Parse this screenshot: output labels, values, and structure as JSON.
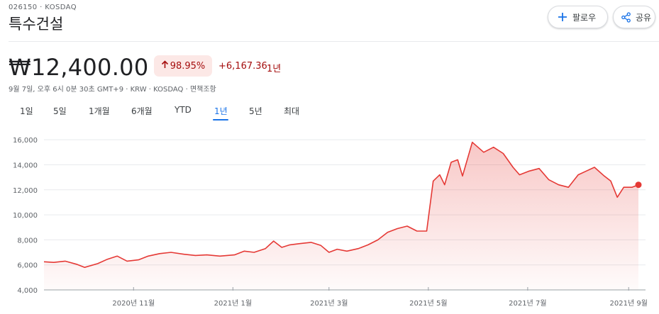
{
  "header": {
    "ticker": "026150 · KOSDAQ",
    "company": "특수건설",
    "follow_label": "팔로우",
    "share_label": "공유",
    "follow_icon": "plus-icon",
    "share_icon": "share-icon"
  },
  "quote": {
    "price": "₩12,400.00",
    "change_percent": "98.95%",
    "change_abs": "+6,167.36",
    "change_period": "1년",
    "meta": "9월 7일, 오후 6시 0분 30초 GMT+9 · KRW · KOSDAQ · 면책조항",
    "negative_color": "#a50e0e",
    "pill_color": "#fce8e6"
  },
  "tabs": [
    {
      "label": "1일",
      "active": false
    },
    {
      "label": "5일",
      "active": false
    },
    {
      "label": "1개월",
      "active": false
    },
    {
      "label": "6개월",
      "active": false
    },
    {
      "label": "YTD",
      "active": false
    },
    {
      "label": "1년",
      "active": true
    },
    {
      "label": "5년",
      "active": false
    },
    {
      "label": "최대",
      "active": false
    }
  ],
  "chart_data": {
    "type": "area",
    "xlabel": "",
    "ylabel": "",
    "x_ticks": [
      "2020년 11월",
      "2021년 1월",
      "2021년 3월",
      "2021년 5월",
      "2021년 7월",
      "2021년 9월"
    ],
    "y_ticks": [
      4000,
      6000,
      8000,
      10000,
      12000,
      14000,
      16000
    ],
    "ylim": [
      4000,
      16800
    ],
    "xlim": [
      "2020-09-07",
      "2021-09-07"
    ],
    "grid": "horizontal",
    "line_color": "#e53935",
    "series": [
      {
        "points": [
          [
            "2020-09-07",
            6250
          ],
          [
            "2020-09-13",
            6200
          ],
          [
            "2020-09-20",
            6300
          ],
          [
            "2020-09-27",
            6050
          ],
          [
            "2020-10-02",
            5800
          ],
          [
            "2020-10-10",
            6100
          ],
          [
            "2020-10-16",
            6450
          ],
          [
            "2020-10-22",
            6700
          ],
          [
            "2020-10-28",
            6300
          ],
          [
            "2020-11-04",
            6400
          ],
          [
            "2020-11-10",
            6700
          ],
          [
            "2020-11-17",
            6900
          ],
          [
            "2020-11-24",
            7000
          ],
          [
            "2020-12-02",
            6850
          ],
          [
            "2020-12-09",
            6750
          ],
          [
            "2020-12-16",
            6800
          ],
          [
            "2020-12-24",
            6700
          ],
          [
            "2021-01-02",
            6800
          ],
          [
            "2021-01-08",
            7100
          ],
          [
            "2021-01-14",
            7000
          ],
          [
            "2021-01-21",
            7300
          ],
          [
            "2021-01-26",
            7900
          ],
          [
            "2021-01-31",
            7400
          ],
          [
            "2021-02-05",
            7600
          ],
          [
            "2021-02-11",
            7700
          ],
          [
            "2021-02-18",
            7800
          ],
          [
            "2021-02-24",
            7550
          ],
          [
            "2021-03-01",
            7000
          ],
          [
            "2021-03-06",
            7250
          ],
          [
            "2021-03-12",
            7100
          ],
          [
            "2021-03-19",
            7300
          ],
          [
            "2021-03-25",
            7600
          ],
          [
            "2021-03-31",
            8000
          ],
          [
            "2021-04-06",
            8600
          ],
          [
            "2021-04-12",
            8900
          ],
          [
            "2021-04-18",
            9100
          ],
          [
            "2021-04-24",
            8700
          ],
          [
            "2021-04-30",
            8700
          ],
          [
            "2021-05-04",
            12700
          ],
          [
            "2021-05-08",
            13200
          ],
          [
            "2021-05-11",
            12400
          ],
          [
            "2021-05-15",
            14200
          ],
          [
            "2021-05-19",
            14400
          ],
          [
            "2021-05-22",
            13100
          ],
          [
            "2021-05-28",
            15800
          ],
          [
            "2021-06-04",
            15000
          ],
          [
            "2021-06-10",
            15400
          ],
          [
            "2021-06-16",
            14900
          ],
          [
            "2021-06-22",
            13800
          ],
          [
            "2021-06-26",
            13200
          ],
          [
            "2021-07-02",
            13500
          ],
          [
            "2021-07-08",
            13700
          ],
          [
            "2021-07-14",
            12800
          ],
          [
            "2021-07-20",
            12400
          ],
          [
            "2021-07-26",
            12200
          ],
          [
            "2021-08-01",
            13200
          ],
          [
            "2021-08-06",
            13500
          ],
          [
            "2021-08-11",
            13800
          ],
          [
            "2021-08-17",
            13100
          ],
          [
            "2021-08-21",
            12700
          ],
          [
            "2021-08-25",
            11400
          ],
          [
            "2021-08-29",
            12200
          ],
          [
            "2021-09-03",
            12200
          ],
          [
            "2021-09-07",
            12400
          ]
        ]
      }
    ]
  }
}
